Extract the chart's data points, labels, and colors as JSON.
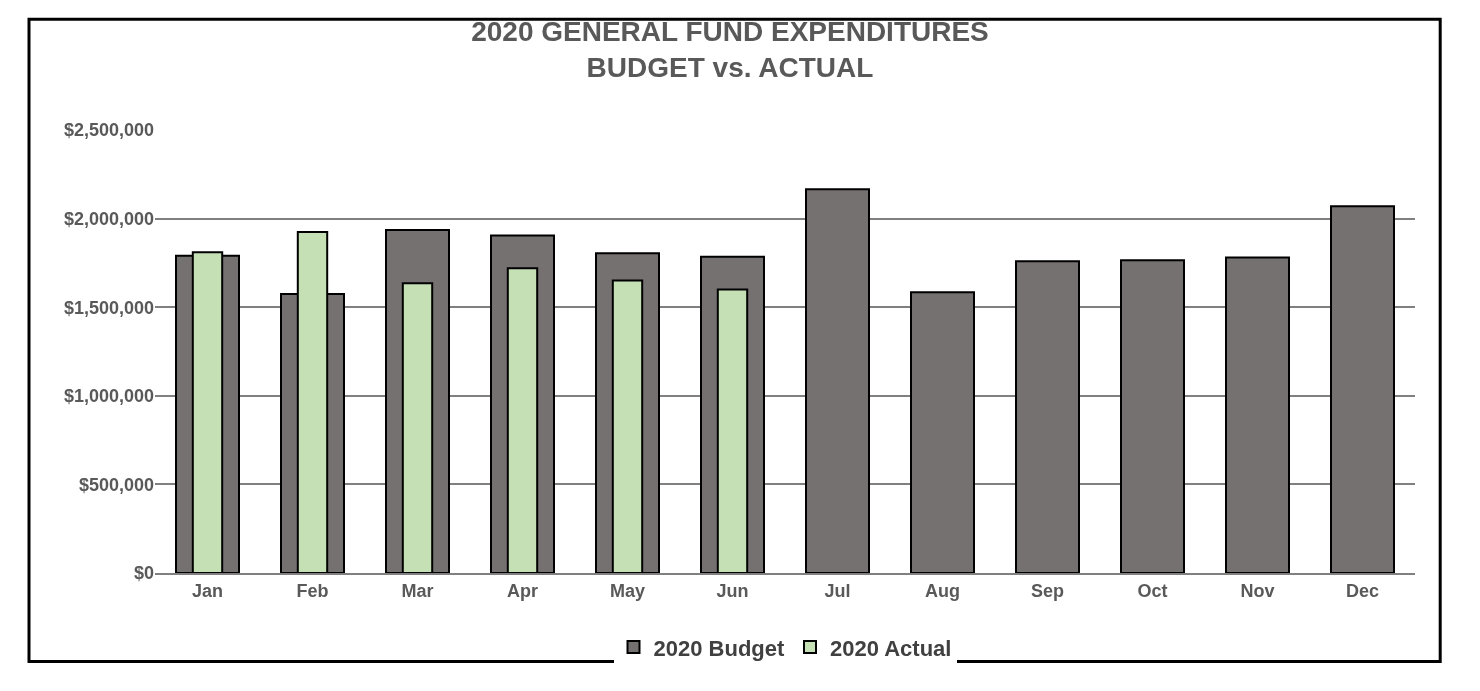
{
  "chart_data": {
    "type": "bar",
    "title": "2020 GENERAL FUND EXPENDITURES\nBUDGET vs. ACTUAL",
    "categories": [
      "Jan",
      "Feb",
      "Mar",
      "Apr",
      "May",
      "Jun",
      "Jul",
      "Aug",
      "Sep",
      "Oct",
      "Nov",
      "Dec"
    ],
    "series": [
      {
        "name": "2020 Budget",
        "color": "#767171",
        "values": [
          1790000,
          1575000,
          1935000,
          1905000,
          1805000,
          1785000,
          2165000,
          1585000,
          1760000,
          1765000,
          1780000,
          2070000
        ]
      },
      {
        "name": "2020 Actual",
        "color": "#c5e0b4",
        "values": [
          1810000,
          1925000,
          1635000,
          1720000,
          1650000,
          1600000,
          null,
          null,
          null,
          null,
          null,
          null
        ]
      }
    ],
    "ylim": [
      0,
      2500000
    ],
    "yticks": [
      {
        "value": 0,
        "label": "$0"
      },
      {
        "value": 500000,
        "label": "$500,000"
      },
      {
        "value": 1000000,
        "label": "$1,000,000"
      },
      {
        "value": 1500000,
        "label": "$1,500,000"
      },
      {
        "value": 2000000,
        "label": "$2,000,000"
      },
      {
        "value": 2500000,
        "label": "$2,500,000"
      }
    ],
    "grid": "y",
    "legend": "bottom"
  }
}
